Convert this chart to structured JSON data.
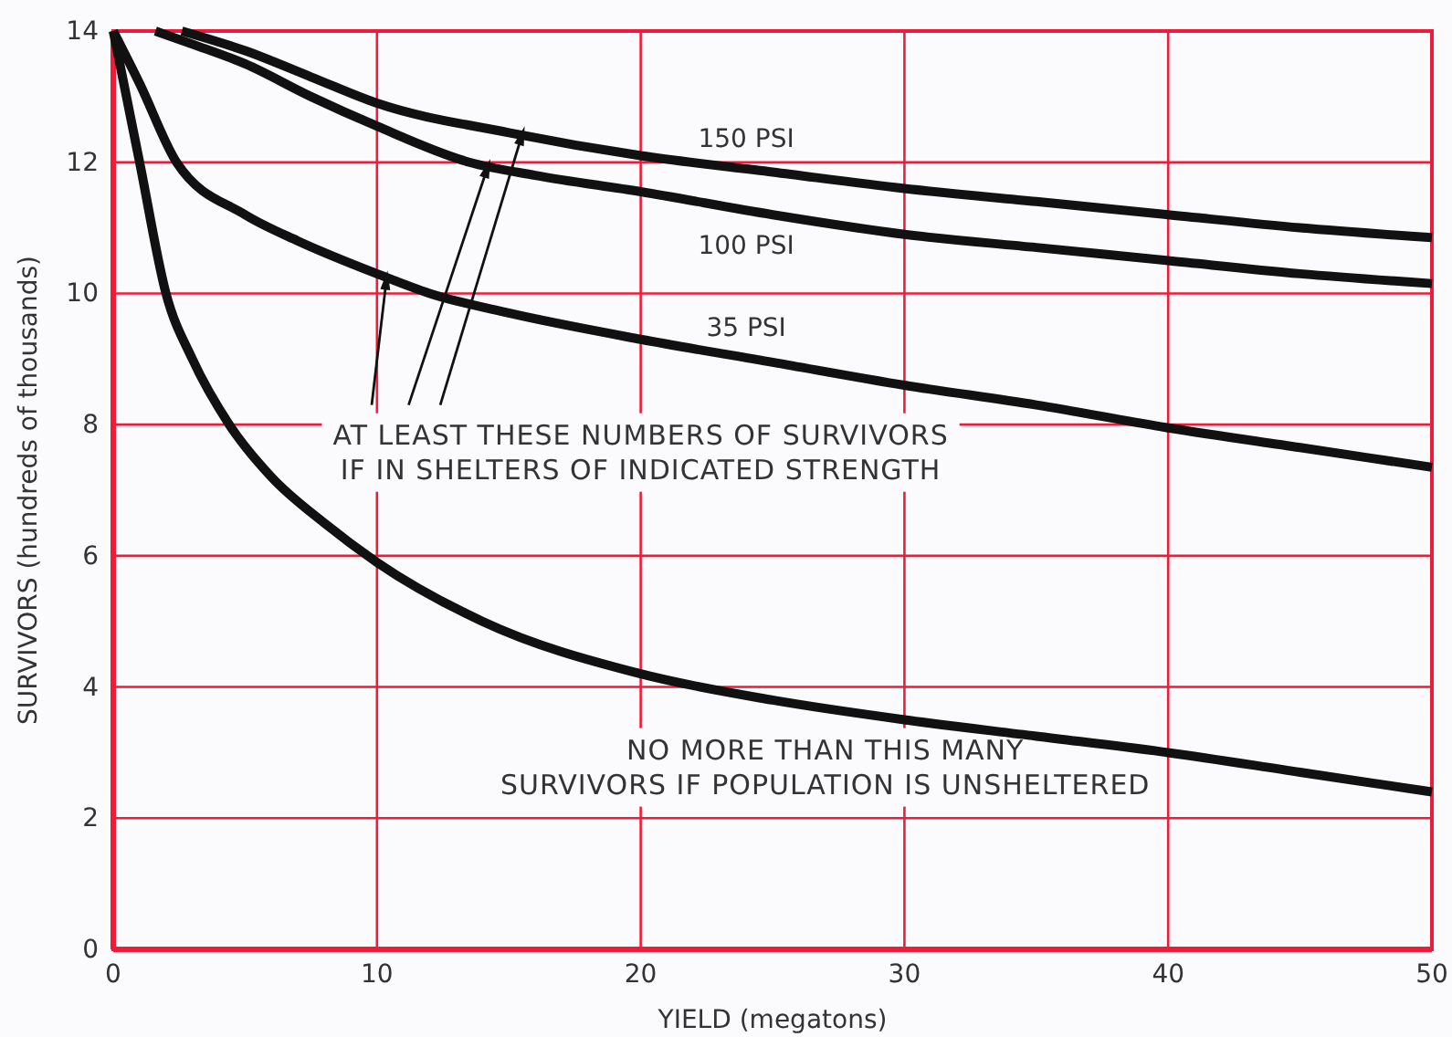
{
  "chart_data": {
    "type": "line",
    "xlabel": "YIELD (megatons)",
    "ylabel": "SURVIVORS (hundreds of thousands)",
    "xlim": [
      0,
      50
    ],
    "ylim": [
      0,
      14
    ],
    "xticks": [
      0,
      10,
      20,
      30,
      40,
      50
    ],
    "yticks": [
      0,
      2,
      4,
      6,
      8,
      10,
      12,
      14
    ],
    "grid": true,
    "legend": false,
    "marker": "none",
    "line_style": "solid",
    "series": [
      {
        "name": "150 PSI",
        "color": "#111111",
        "x": [
          2.6,
          5,
          7.5,
          10,
          15,
          20,
          25,
          30,
          35,
          40,
          45,
          50
        ],
        "values": [
          14,
          13.7,
          13.3,
          12.9,
          12.45,
          12.1,
          11.85,
          11.6,
          11.4,
          11.2,
          11.0,
          10.85
        ]
      },
      {
        "name": "100 PSI",
        "color": "#111111",
        "x": [
          1.6,
          3,
          5,
          7.5,
          10,
          13.5,
          16,
          20,
          25,
          30,
          35,
          40,
          45,
          50
        ],
        "values": [
          14,
          13.8,
          13.5,
          13.0,
          12.55,
          12,
          11.8,
          11.55,
          11.2,
          10.9,
          10.7,
          10.5,
          10.3,
          10.15
        ]
      },
      {
        "name": "35 PSI",
        "color": "#111111",
        "x": [
          0,
          1,
          2.4,
          5,
          7,
          10,
          12,
          15,
          20,
          25,
          30,
          35,
          40,
          45,
          50
        ],
        "values": [
          14,
          13.2,
          12,
          11.2,
          10.8,
          10.3,
          10,
          9.7,
          9.3,
          8.95,
          8.6,
          8.3,
          7.95,
          7.65,
          7.35
        ]
      },
      {
        "color": "#111111",
        "x": [
          0,
          0.5,
          1,
          2,
          3,
          4.4,
          6,
          8,
          10,
          14,
          20,
          25,
          30,
          35,
          40,
          45,
          50
        ],
        "values": [
          14,
          13,
          12,
          10,
          9,
          8,
          7.2,
          6.5,
          5.9,
          5,
          4.2,
          3.8,
          3.5,
          3.25,
          3.0,
          2.7,
          2.4
        ]
      }
    ],
    "annotations": [
      {
        "text": "AT LEAST THESE NUMBERS OF SURVIVORS\nIF IN SHELTERS OF INDICATED STRENGTH",
        "x": 14.3,
        "y": 12.05
      },
      "NO MORE THAN THIS MANY\nSURVIVORS IF POPULATION IS UNSHELTERED"
    ]
  }
}
